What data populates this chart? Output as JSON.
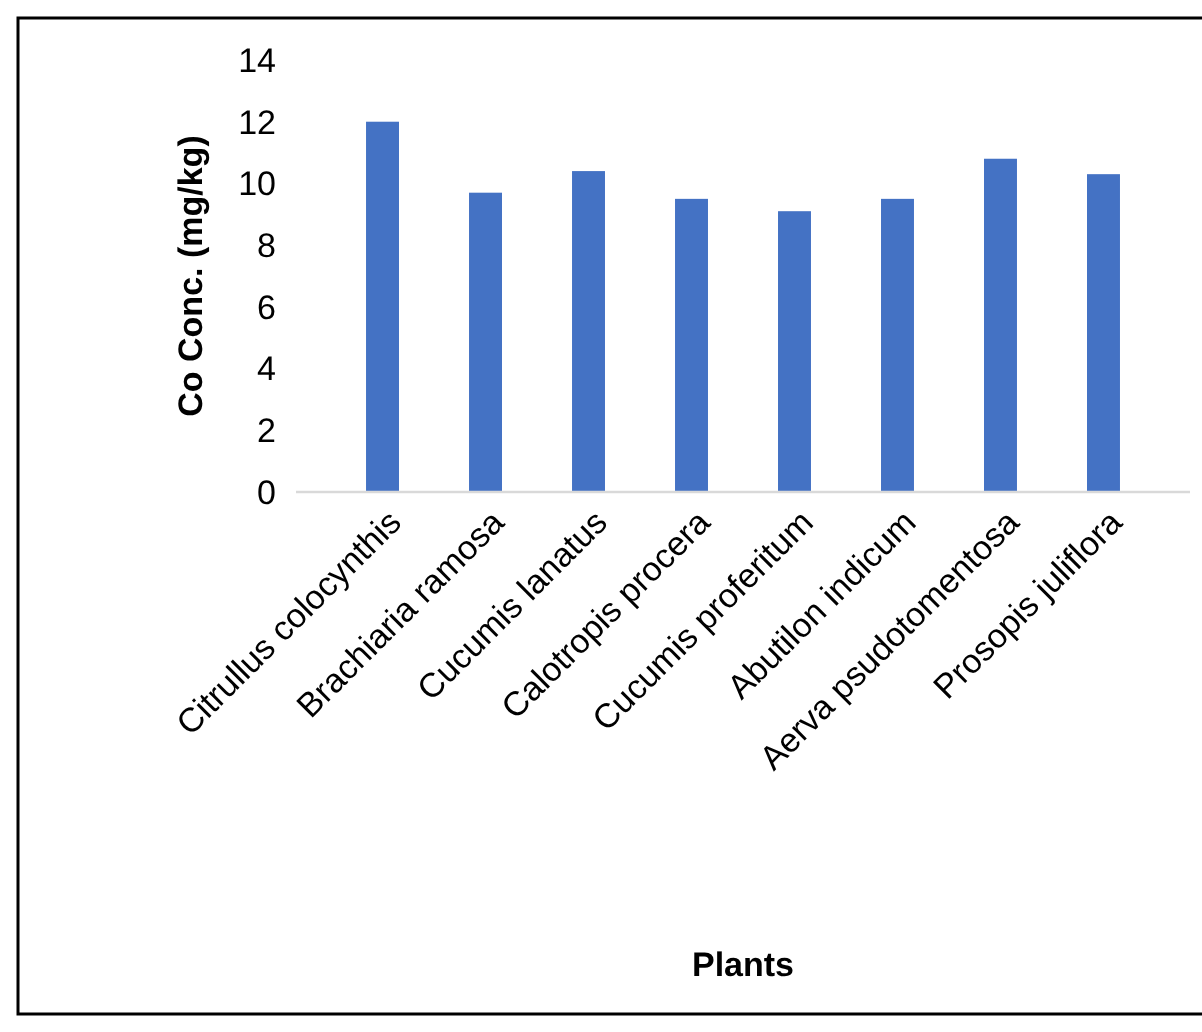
{
  "chart_data": {
    "type": "bar",
    "xlabel": "Plants",
    "ylabel": "Co Conc. (mg/kg)",
    "categories": [
      "Citrullus colocynthis",
      "Brachiaria ramosa",
      "Cucumis lanatus",
      "Calotropis procera",
      "Cucumis proferitum",
      "Abutilon indicum",
      "Aerva psudotomentosa",
      "Prosopis juliflora"
    ],
    "values": [
      12.0,
      9.7,
      10.4,
      9.5,
      9.1,
      9.5,
      10.8,
      10.3
    ],
    "color": "#4472c4",
    "ylim": [
      0,
      14
    ],
    "yticks": [
      0,
      2,
      4,
      6,
      8,
      10,
      12,
      14
    ],
    "grid": false
  }
}
